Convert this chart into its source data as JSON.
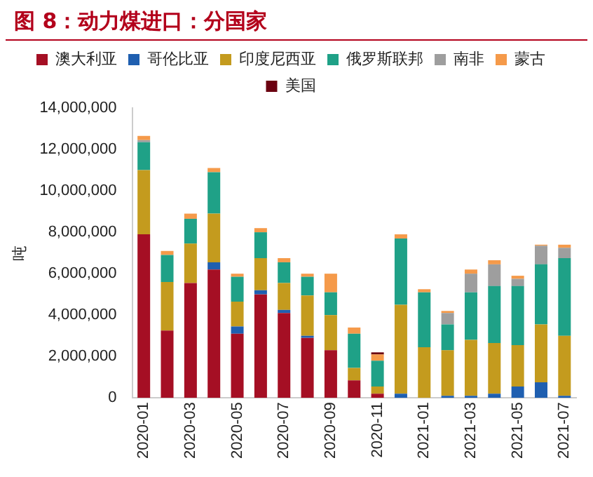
{
  "chart_data": {
    "type": "bar",
    "title": "图 8：动力煤进口：分国家",
    "ylabel": "吨",
    "stacked": true,
    "legend": "top",
    "grid": false,
    "categories": [
      "2020-01",
      null,
      "2020-03",
      null,
      "2020-05",
      null,
      "2020-07",
      null,
      "2020-09",
      null,
      "2020-11",
      null,
      "2021-01",
      null,
      "2021-03",
      null,
      "2021-05",
      null,
      "2021-07"
    ],
    "ylim": [
      0,
      14000000
    ],
    "yticks": [
      0,
      {
        "value": 2000000,
        "label": "2,000,000"
      },
      {
        "value": 4000000,
        "label": "4,000,000"
      },
      {
        "value": 6000000,
        "label": "6,000,000"
      },
      {
        "value": 8000000,
        "label": "8,000,000"
      },
      {
        "value": 10000000,
        "label": "10,000,000"
      },
      {
        "value": 12000000,
        "label": "12,000,000"
      },
      {
        "value": 14000000,
        "label": "14,000,000"
      }
    ],
    "series": [
      {
        "name": "澳大利亚",
        "color": "#a50f24",
        "values": [
          7900000,
          3250000,
          5550000,
          6200000,
          3100000,
          5000000,
          4100000,
          2900000,
          2300000,
          850000,
          200000,
          0,
          0,
          0,
          0,
          0,
          0,
          0,
          0
        ]
      },
      {
        "name": "哥伦比亚",
        "color": "#1f5fb0",
        "values": [
          0,
          0,
          0,
          350000,
          350000,
          200000,
          150000,
          100000,
          0,
          0,
          0,
          200000,
          0,
          100000,
          100000,
          200000,
          550000,
          750000,
          100000
        ]
      },
      {
        "name": "印度尼西亚",
        "color": "#c49b1e",
        "values": [
          3100000,
          2350000,
          1900000,
          2350000,
          1200000,
          1550000,
          1300000,
          1950000,
          1700000,
          600000,
          350000,
          4300000,
          2450000,
          2200000,
          2700000,
          2450000,
          2000000,
          2800000,
          2900000
        ]
      },
      {
        "name": "俄罗斯联邦",
        "color": "#1fa187",
        "values": [
          1350000,
          1300000,
          1200000,
          2000000,
          1200000,
          1250000,
          1000000,
          900000,
          1100000,
          1650000,
          1250000,
          3200000,
          2650000,
          1250000,
          2300000,
          2750000,
          2850000,
          2900000,
          3750000
        ]
      },
      {
        "name": "南非",
        "color": "#9e9e9e",
        "values": [
          100000,
          0,
          0,
          0,
          0,
          0,
          0,
          0,
          0,
          0,
          0,
          0,
          0,
          550000,
          900000,
          1050000,
          350000,
          900000,
          500000
        ]
      },
      {
        "name": "蒙古",
        "color": "#f59a4a",
        "values": [
          200000,
          200000,
          250000,
          200000,
          150000,
          200000,
          200000,
          150000,
          900000,
          300000,
          300000,
          200000,
          150000,
          100000,
          200000,
          200000,
          150000,
          50000,
          150000
        ]
      },
      {
        "name": "美国",
        "color": "#6b0010",
        "values": [
          0,
          0,
          0,
          0,
          0,
          0,
          0,
          0,
          0,
          0,
          100000,
          0,
          0,
          0,
          0,
          0,
          0,
          0,
          0
        ]
      }
    ]
  }
}
